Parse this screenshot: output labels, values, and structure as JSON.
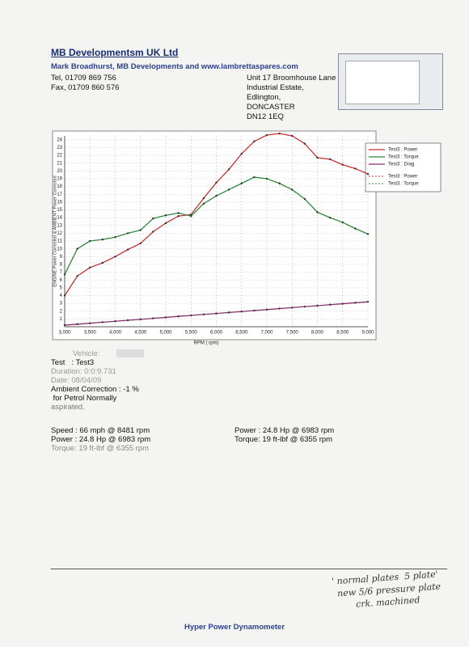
{
  "header": {
    "company": "MB Developmentsm UK Ltd",
    "subtitle": "Mark Broadhurst, MB Developments and www.lambrettaspares.com",
    "tel": "Tel, 01709 869 756",
    "fax": "Fax, 01709 860 576",
    "address": [
      "Unit 17 Broomhouse Lane",
      "Industrial Estate,",
      "Edlington,",
      "DONCASTER",
      "DN12 1EQ"
    ]
  },
  "chart_data": {
    "type": "line",
    "xlabel": "RPM ( rpm)",
    "ylabel": "ENGINE Power Corrected & AMBIENT Power Corrected",
    "x": [
      3000,
      3250,
      3500,
      3750,
      4000,
      4250,
      4500,
      4750,
      5000,
      5250,
      5500,
      5750,
      6000,
      6250,
      6500,
      6750,
      7000,
      7250,
      7500,
      7750,
      8000,
      8250,
      8500,
      8750,
      9000
    ],
    "series": [
      {
        "name": "Test3 : Power",
        "color": "#c8322e",
        "values": [
          4.0,
          6.5,
          7.6,
          8.2,
          9.0,
          9.9,
          10.7,
          12.2,
          13.3,
          14.2,
          14.4,
          16.5,
          18.5,
          20.2,
          22.2,
          23.8,
          24.6,
          24.8,
          24.5,
          23.5,
          21.7,
          21.5,
          20.8,
          20.3,
          19.6
        ]
      },
      {
        "name": "Test3 : Torque",
        "color": "#2f8a3a",
        "values": [
          6.7,
          10.0,
          11.0,
          11.2,
          11.5,
          12.0,
          12.4,
          13.9,
          14.3,
          14.6,
          14.2,
          15.8,
          16.8,
          17.6,
          18.4,
          19.2,
          19.0,
          18.4,
          17.6,
          16.4,
          14.7,
          14.0,
          13.4,
          12.6,
          11.9
        ]
      },
      {
        "name": "Test3 : Drag",
        "color": "#8a2f6e",
        "values": [
          0.2,
          0.33,
          0.45,
          0.58,
          0.7,
          0.83,
          0.95,
          1.08,
          1.2,
          1.33,
          1.45,
          1.58,
          1.7,
          1.83,
          1.95,
          2.08,
          2.2,
          2.33,
          2.45,
          2.58,
          2.7,
          2.83,
          2.95,
          3.08,
          3.2
        ]
      }
    ],
    "legend_extra": [
      "Test3 : Power",
      "Test3 : Torque"
    ],
    "xlim": [
      3000,
      9000
    ],
    "xticks": [
      {
        "value": 3000,
        "label": "3,000"
      },
      {
        "value": 3500,
        "label": "3,500"
      },
      {
        "value": 4000,
        "label": "4,000"
      },
      {
        "value": 4500,
        "label": "4,500"
      },
      {
        "value": 5000,
        "label": "5,000"
      },
      {
        "value": 5500,
        "label": "5,500"
      },
      {
        "value": 6000,
        "label": "6,000"
      },
      {
        "value": 6500,
        "label": "6,500"
      },
      {
        "value": 7000,
        "label": "7,000"
      },
      {
        "value": 7500,
        "label": "7,500"
      },
      {
        "value": 8000,
        "label": "8,000"
      },
      {
        "value": 8500,
        "label": "8,500"
      },
      {
        "value": 9000,
        "label": "9,000"
      }
    ],
    "ylim": [
      0,
      24.5
    ],
    "yticks": [
      1,
      2,
      3,
      4,
      5,
      6,
      7,
      8,
      9,
      10,
      11,
      12,
      13,
      14,
      15,
      16,
      17,
      18,
      19,
      20,
      21,
      22,
      23,
      24
    ],
    "grid": true
  },
  "info": {
    "vehicle": "Vehicle:",
    "test": "Test   : Test3",
    "duration": "Duration: 0:0:9.731",
    "date": "Date: 08/04/09",
    "ambient": "Ambient Correction : -1 %",
    "ambient2": " for Petrol Normally",
    "ambient3": "aspirated."
  },
  "results": {
    "left": [
      "Speed : 66 mph @ 8481 rpm",
      "Power : 24.8 Hp @ 6983 rpm",
      "Torque: 19 ft-lbf @ 6355 rpm"
    ],
    "right": [
      "Power : 24.8 Hp @ 6983 rpm",
      "Torque: 19 ft-lbf @ 6355 rpm"
    ]
  },
  "handwriting": [
    "' normal plates  5 plate'",
    "new 5/6 pressure plate",
    "crk. machined"
  ],
  "footer": "Hyper Power Dynamometer"
}
